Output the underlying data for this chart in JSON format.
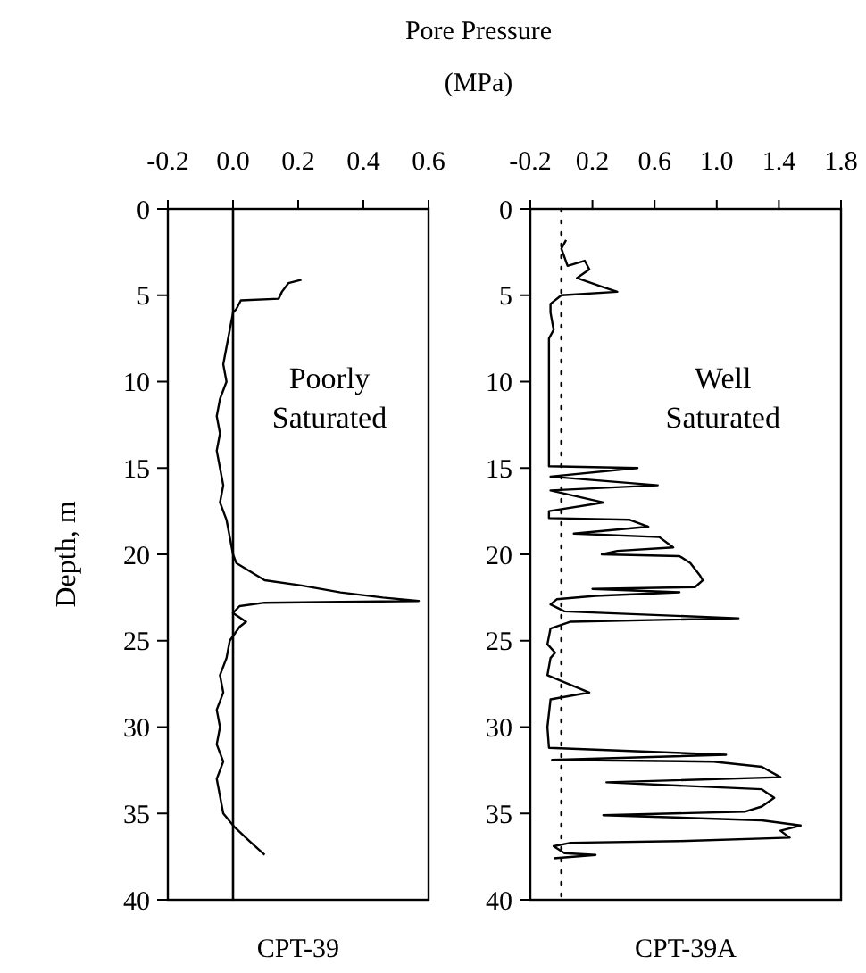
{
  "chart_data": [
    {
      "type": "line",
      "title": "Pore Pressure (MPa)",
      "xlabel": "CPT-39",
      "ylabel": "Depth, m",
      "xlim": [
        -0.2,
        0.6
      ],
      "xticks": [
        -0.2,
        {
          "value": 0,
          "label": "0.0"
        },
        0.2,
        0.4,
        0.6
      ],
      "ylim": [
        40,
        0
      ],
      "yticks": [
        0,
        5,
        10,
        15,
        20,
        25,
        30,
        35,
        40
      ],
      "grid": false,
      "marker": "none",
      "line_style": "solid",
      "annotations": [
        "Poorly Saturated"
      ],
      "ref_lines": [
        {
          "axis": "x",
          "value": 0,
          "label": null,
          "color": "#000000",
          "line_style": "solid"
        }
      ],
      "series": [
        {
          "color": "#000000",
          "x": [
            0.21,
            0.17,
            0.15,
            0.14,
            0.024,
            0.01,
            0.0,
            -0.01,
            -0.02,
            -0.03,
            -0.02,
            -0.04,
            -0.05,
            -0.04,
            -0.05,
            -0.04,
            -0.03,
            -0.04,
            -0.02,
            -0.01,
            0.0,
            0.01,
            0.097,
            0.21,
            0.33,
            0.46,
            0.57,
            0.097,
            0.02,
            0.0,
            0.04,
            0.02,
            -0.01,
            -0.02,
            -0.04,
            -0.03,
            -0.05,
            -0.04,
            -0.05,
            -0.03,
            -0.05,
            -0.04,
            -0.03,
            0.005,
            0.05,
            0.097
          ],
          "values": [
            4.1,
            4.3,
            4.8,
            5.2,
            5.3,
            5.8,
            6,
            7,
            8,
            9,
            10,
            11,
            12,
            13,
            14,
            15,
            16,
            17,
            18,
            19,
            20,
            20.5,
            21.5,
            21.8,
            22.2,
            22.5,
            22.7,
            22.8,
            23.0,
            23.4,
            23.9,
            24.2,
            25,
            26,
            27,
            28,
            29,
            30,
            31,
            32,
            33,
            34,
            35,
            35.8,
            36.6,
            37.4
          ]
        }
      ]
    },
    {
      "type": "line",
      "xlabel": "CPT-39A",
      "xlim": [
        -0.2,
        1.8
      ],
      "xticks": [
        -0.2,
        0.2,
        0.6,
        {
          "value": 1,
          "label": "1.0"
        },
        1.4,
        1.8
      ],
      "ylim": [
        40,
        0
      ],
      "yticks": [
        0,
        5,
        10,
        15,
        20,
        25,
        30,
        35,
        40
      ],
      "grid": false,
      "marker": "none",
      "line_style": "solid",
      "annotations": [
        "Well Saturated"
      ],
      "ref_lines": [
        {
          "axis": "x",
          "value": 0,
          "label": null,
          "color": "#000000",
          "line_style": "dotted"
        }
      ],
      "series": [
        {
          "color": "#000000",
          "x": [
            0.03,
            0.0,
            0.04,
            0.15,
            0.18,
            0.1,
            0.26,
            0.36,
            0.0,
            -0.07,
            -0.07,
            -0.05,
            -0.08,
            -0.08,
            -0.08,
            -0.08,
            0.49,
            -0.07,
            0.62,
            -0.07,
            0.27,
            -0.08,
            -0.08,
            0.44,
            0.56,
            0.08,
            0.63,
            0.72,
            0.36,
            0.26,
            0.76,
            0.83,
            0.89,
            0.91,
            0.86,
            0.2,
            0.76,
            0.22,
            -0.03,
            -0.07,
            0.02,
            1.14,
            0.06,
            -0.07,
            -0.09,
            -0.04,
            -0.07,
            -0.09,
            0.18,
            -0.07,
            -0.09,
            -0.08,
            1.06,
            -0.06,
            0.98,
            1.29,
            1.41,
            0.29,
            1.29,
            1.37,
            1.29,
            1.18,
            0.27,
            1.29,
            1.54,
            1.41,
            1.47,
            0.76,
            0.06,
            -0.05,
            0.02,
            0.22,
            -0.05
          ],
          "values": [
            1.8,
            2.3,
            3.3,
            3.0,
            3.5,
            4.0,
            4.5,
            4.8,
            5.0,
            5.5,
            6,
            7,
            7.5,
            10,
            14.8,
            14.9,
            15.0,
            15.5,
            16.0,
            16.3,
            17.0,
            17.5,
            17.9,
            18.0,
            18.4,
            18.8,
            19.0,
            19.6,
            19.8,
            20.0,
            20.1,
            20.5,
            21.2,
            21.5,
            21.9,
            22.0,
            22.2,
            22.4,
            22.6,
            22.9,
            23.3,
            23.7,
            23.9,
            24.3,
            25.2,
            25.7,
            26.0,
            27,
            28.0,
            28.4,
            30,
            31.2,
            31.6,
            31.9,
            32.0,
            32.3,
            32.9,
            33.2,
            33.6,
            34.1,
            34.6,
            34.9,
            35.1,
            35.4,
            35.7,
            36.0,
            36.4,
            36.6,
            36.7,
            36.9,
            37.3,
            37.4,
            37.6
          ]
        }
      ]
    }
  ]
}
